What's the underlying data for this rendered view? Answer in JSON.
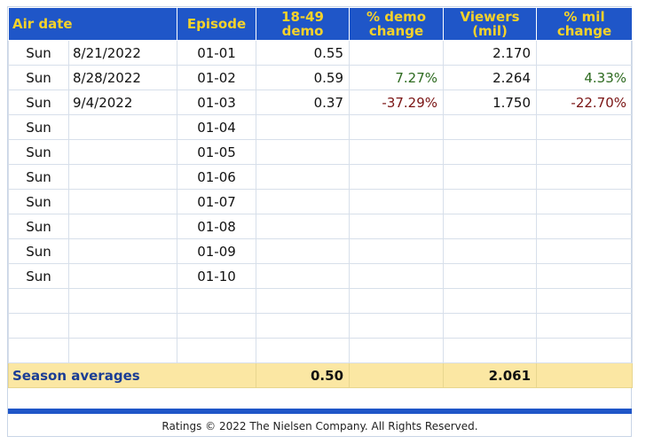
{
  "headers": {
    "air_date": "Air date",
    "episode": "Episode",
    "demo": [
      "18-49",
      "demo"
    ],
    "demo_change": [
      "% demo",
      "change"
    ],
    "viewers": [
      "Viewers",
      "(mil)"
    ],
    "mil_change": [
      "% mil",
      "change"
    ]
  },
  "rows": [
    {
      "day": "Sun",
      "date": "8/21/2022",
      "episode": "01-01",
      "demo": "0.55",
      "demo_change": "",
      "viewers": "2.170",
      "mil_change": ""
    },
    {
      "day": "Sun",
      "date": "8/28/2022",
      "episode": "01-02",
      "demo": "0.59",
      "demo_change": "7.27%",
      "viewers": "2.264",
      "mil_change": "4.33%"
    },
    {
      "day": "Sun",
      "date": "9/4/2022",
      "episode": "01-03",
      "demo": "0.37",
      "demo_change": "-37.29%",
      "viewers": "1.750",
      "mil_change": "-22.70%"
    },
    {
      "day": "Sun",
      "date": "",
      "episode": "01-04",
      "demo": "",
      "demo_change": "",
      "viewers": "",
      "mil_change": ""
    },
    {
      "day": "Sun",
      "date": "",
      "episode": "01-05",
      "demo": "",
      "demo_change": "",
      "viewers": "",
      "mil_change": ""
    },
    {
      "day": "Sun",
      "date": "",
      "episode": "01-06",
      "demo": "",
      "demo_change": "",
      "viewers": "",
      "mil_change": ""
    },
    {
      "day": "Sun",
      "date": "",
      "episode": "01-07",
      "demo": "",
      "demo_change": "",
      "viewers": "",
      "mil_change": ""
    },
    {
      "day": "Sun",
      "date": "",
      "episode": "01-08",
      "demo": "",
      "demo_change": "",
      "viewers": "",
      "mil_change": ""
    },
    {
      "day": "Sun",
      "date": "",
      "episode": "01-09",
      "demo": "",
      "demo_change": "",
      "viewers": "",
      "mil_change": ""
    },
    {
      "day": "Sun",
      "date": "",
      "episode": "01-10",
      "demo": "",
      "demo_change": "",
      "viewers": "",
      "mil_change": ""
    },
    {
      "day": "",
      "date": "",
      "episode": "",
      "demo": "",
      "demo_change": "",
      "viewers": "",
      "mil_change": ""
    },
    {
      "day": "",
      "date": "",
      "episode": "",
      "demo": "",
      "demo_change": "",
      "viewers": "",
      "mil_change": ""
    },
    {
      "day": "",
      "date": "",
      "episode": "",
      "demo": "",
      "demo_change": "",
      "viewers": "",
      "mil_change": ""
    }
  ],
  "averages": {
    "label": "Season averages",
    "demo": "0.50",
    "viewers": "2.061"
  },
  "footer": {
    "credit": "Ratings © 2022 The Nielsen Company. All Rights Reserved."
  },
  "colors": {
    "header_bg": "#1f56c8",
    "header_text": "#f5d22a",
    "averages_bg": "#fbe7a3",
    "negative": "#7a1414",
    "positive": "#2d6a1f"
  }
}
